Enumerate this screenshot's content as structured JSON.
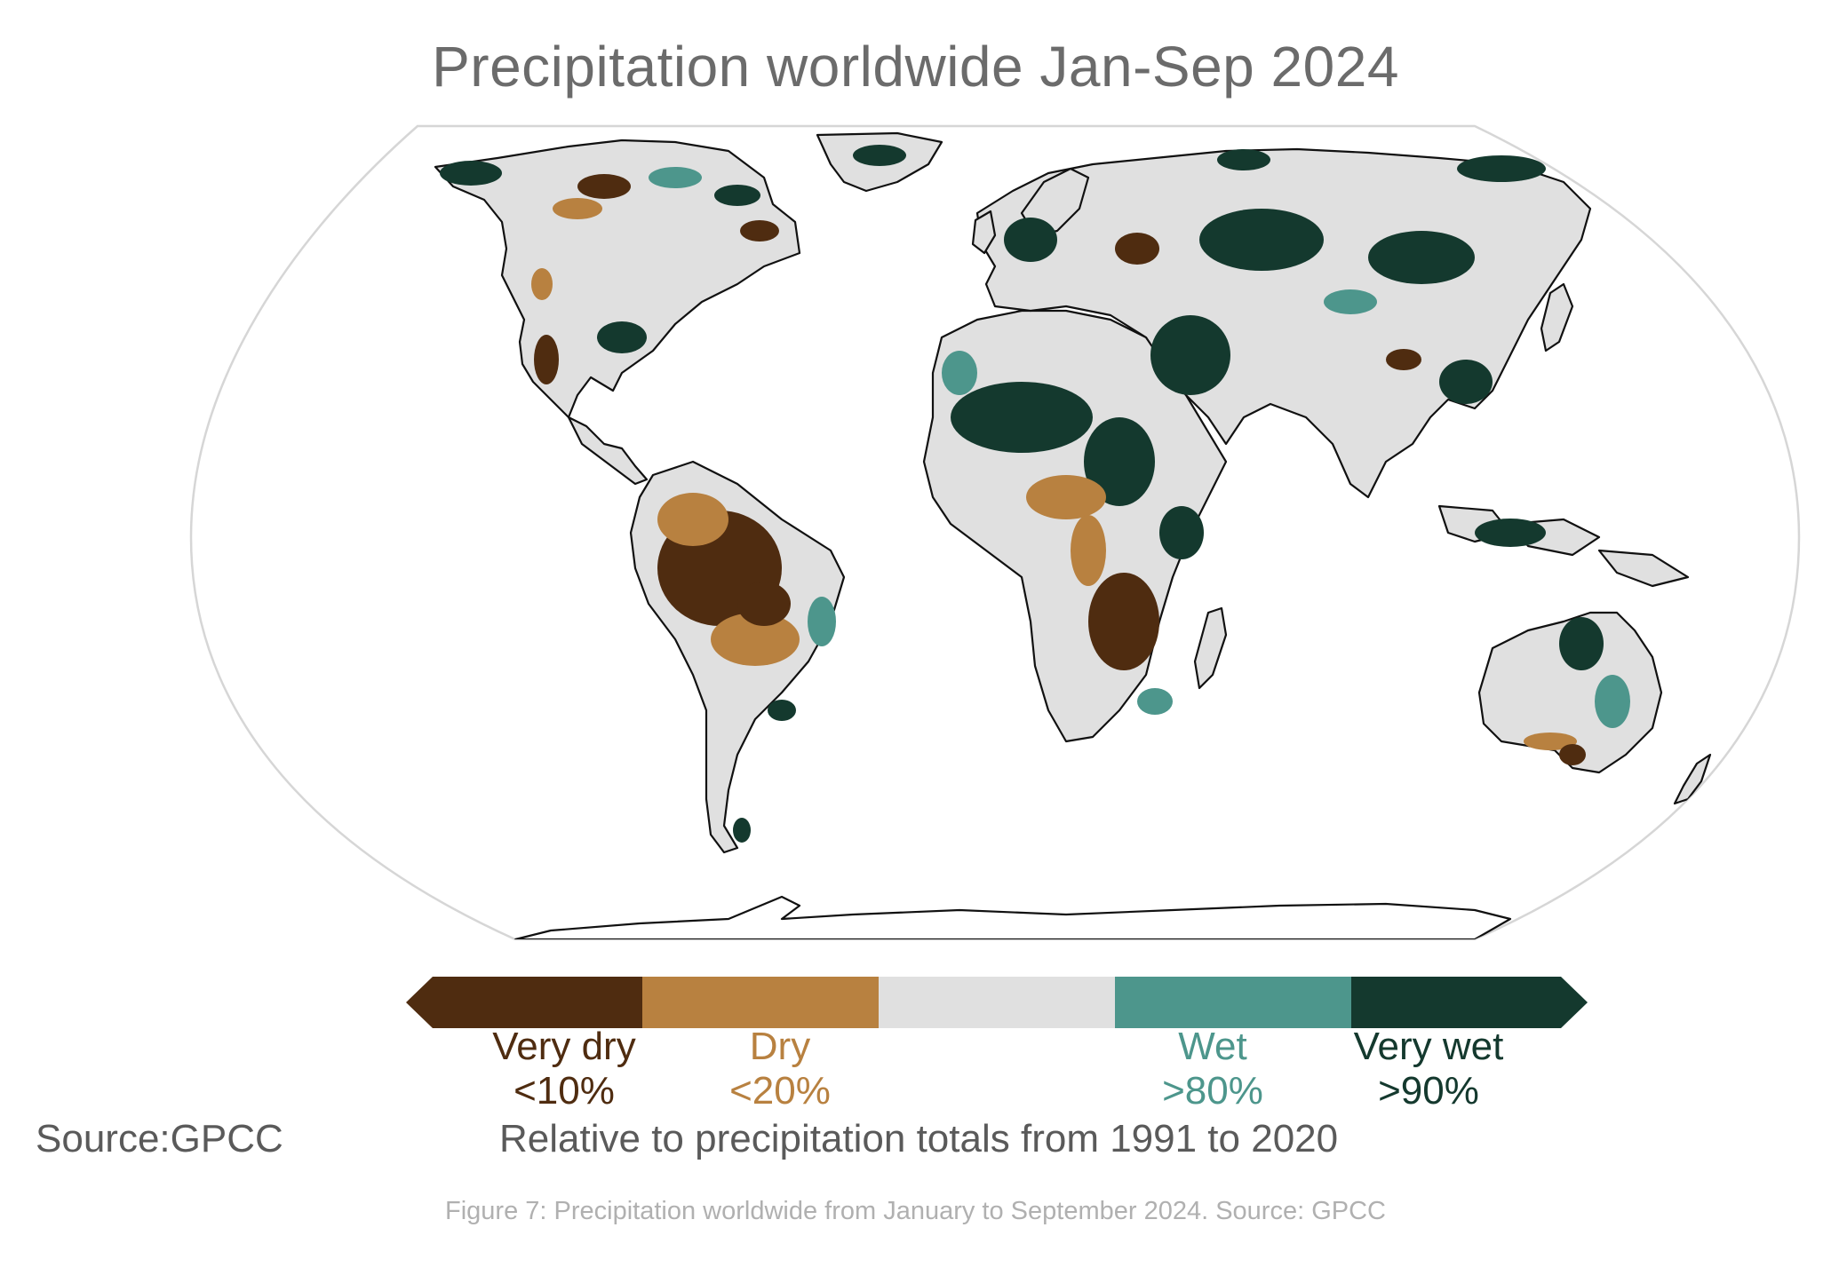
{
  "title": "Precipitation worldwide Jan-Sep 2024",
  "legend": {
    "categories": [
      {
        "name": "Very dry",
        "range": "<10%",
        "color": "#4f2c10"
      },
      {
        "name": "Dry",
        "range": "<20%",
        "color": "#b88140"
      },
      {
        "name": "",
        "range": "",
        "color": "#e0e0e0"
      },
      {
        "name": "Wet",
        "range": ">80%",
        "color": "#4d968c"
      },
      {
        "name": "Very wet",
        "range": ">90%",
        "color": "#14392e"
      }
    ]
  },
  "source": "Source:GPCC",
  "reference": "Relative to precipitation totals from 1991 to 2020",
  "caption": "Figure 7: Precipitation worldwide from January to September 2024. Source: GPCC",
  "map": {
    "projection": "Robinson",
    "land_color": "#e0e0e0",
    "outline_color": "#000000"
  }
}
